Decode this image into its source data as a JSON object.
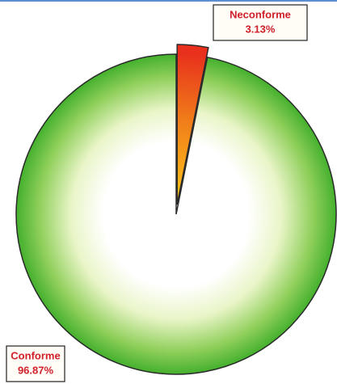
{
  "chart_data": {
    "type": "pie",
    "categories": [
      "Neconforme",
      "Conforme"
    ],
    "values": [
      3.13,
      96.87
    ],
    "value_labels": [
      "3.13%",
      "96.87%"
    ],
    "colors": [
      "#e8301c",
      "#3fae2a"
    ]
  }
}
